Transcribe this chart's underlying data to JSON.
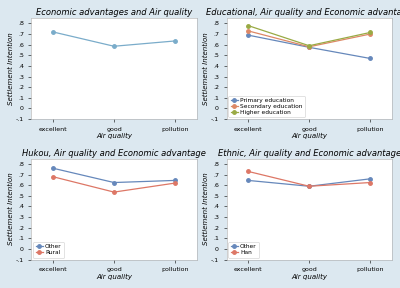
{
  "plot1": {
    "title": "Economic advantages and Air quality",
    "xlabel": "Air quality",
    "ylabel": "Settlement Intention",
    "xticks": [
      "excellent",
      "good",
      "pollution"
    ],
    "line1": {
      "y": [
        0.72,
        0.585,
        0.635
      ],
      "color": "#7aacca",
      "marker": "o",
      "markersize": 3
    }
  },
  "plot2": {
    "title": "Educational, Air quality and Economic advantage",
    "xlabel": "Air quality",
    "ylabel": "Settlement Intention",
    "xticks": [
      "excellent",
      "good",
      "pollution"
    ],
    "lines": [
      {
        "label": "Primary education",
        "y": [
          0.69,
          0.575,
          0.47
        ],
        "color": "#6688bb",
        "marker": "o"
      },
      {
        "label": "Secondary education",
        "y": [
          0.73,
          0.58,
          0.7
        ],
        "color": "#dd8866",
        "marker": "o"
      },
      {
        "label": "Higher education",
        "y": [
          0.78,
          0.59,
          0.715
        ],
        "color": "#99aa44",
        "marker": "o"
      }
    ]
  },
  "plot3": {
    "title": "Hukou, Air quality and Economic advantage",
    "xlabel": "Air quality",
    "ylabel": "Settlement Intention",
    "xticks": [
      "excellent",
      "good",
      "pollution"
    ],
    "lines": [
      {
        "label": "Other",
        "y": [
          0.76,
          0.625,
          0.645
        ],
        "color": "#6688bb",
        "marker": "o"
      },
      {
        "label": "Rural",
        "y": [
          0.68,
          0.535,
          0.62
        ],
        "color": "#dd7766",
        "marker": "o"
      }
    ]
  },
  "plot4": {
    "title": "Ethnic, Air quality and Economic advantage",
    "xlabel": "Air quality",
    "ylabel": "Settlement Intention",
    "xticks": [
      "excellent",
      "good",
      "pollution"
    ],
    "lines": [
      {
        "label": "Other",
        "y": [
          0.645,
          0.59,
          0.66
        ],
        "color": "#6688bb",
        "marker": "o"
      },
      {
        "label": "Han",
        "y": [
          0.73,
          0.59,
          0.625
        ],
        "color": "#dd7766",
        "marker": "o"
      }
    ]
  },
  "fig_bg": "#dce8f0",
  "plot_bg": "#ffffff",
  "title_fontsize": 6.0,
  "label_fontsize": 5.0,
  "tick_fontsize": 4.5,
  "legend_fontsize": 4.2,
  "markersize": 2.5,
  "linewidth": 0.9,
  "ylim_min": -0.1,
  "ylim_max": 0.85,
  "yticks": [
    -0.1,
    0.0,
    0.1,
    0.2,
    0.3,
    0.4,
    0.5,
    0.6,
    0.7,
    0.8
  ]
}
